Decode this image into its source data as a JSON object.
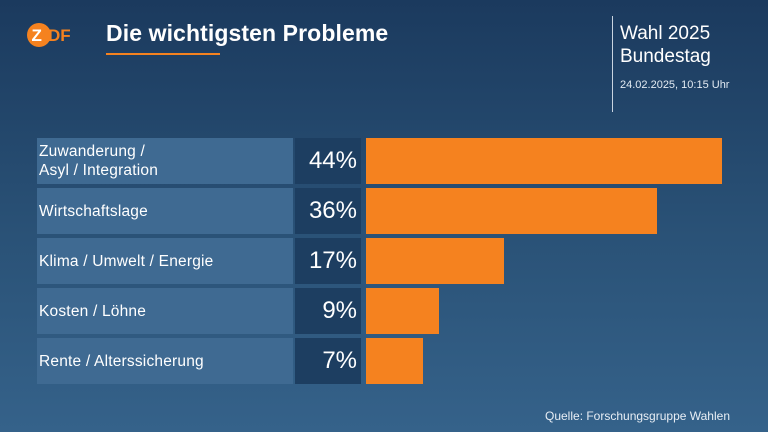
{
  "header": {
    "logo_text": "ZDF",
    "title": "Die wichtigsten Probleme",
    "election_line1": "Wahl 2025",
    "election_line2": "Bundestag",
    "timestamp": "24.02.2025, 10:15 Uhr"
  },
  "footer": {
    "source": "Quelle: Forschungsgruppe Wahlen"
  },
  "colors": {
    "accent": "#f5821f",
    "label_bg": "#3f6a92",
    "value_bg": "#1d3e61"
  },
  "chart_data": {
    "type": "bar",
    "orientation": "horizontal",
    "title": "Die wichtigsten Probleme",
    "categories": [
      "Zuwanderung /\nAsyl / Integration",
      "Wirtschaftslage",
      "Klima / Umwelt / Energie",
      "Kosten / Löhne",
      "Rente / Alterssicherung"
    ],
    "values": [
      44,
      36,
      17,
      9,
      7
    ],
    "value_labels": [
      "44%",
      "36%",
      "17%",
      "9%",
      "7%"
    ],
    "unit": "%",
    "xlim": [
      0,
      44
    ],
    "grid": false
  }
}
